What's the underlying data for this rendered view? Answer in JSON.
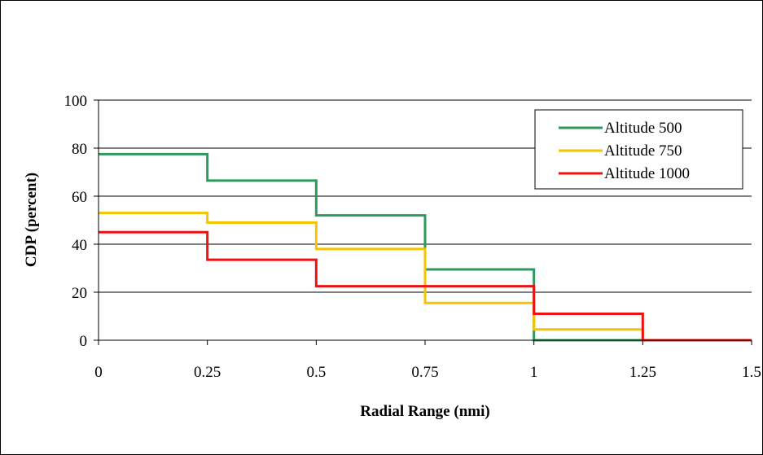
{
  "chart_data": {
    "type": "line",
    "step": true,
    "xlabel": "Radial Range (nmi)",
    "ylabel": "CDP (percent)",
    "xlim": [
      0,
      1.5
    ],
    "ylim": [
      0,
      100
    ],
    "x_ticks": [
      "0",
      "0.25",
      "0.5",
      "0.75",
      "1",
      "1.25",
      "1.5"
    ],
    "y_ticks": [
      "0",
      "20",
      "40",
      "60",
      "80",
      "100"
    ],
    "x_tick_values": [
      0,
      0.25,
      0.5,
      0.75,
      1,
      1.25,
      1.5
    ],
    "y_tick_values": [
      0,
      20,
      40,
      60,
      80,
      100
    ],
    "grid": "horizontal",
    "legend_position": "top-right",
    "series": [
      {
        "name": "Altitude 500",
        "color": "#2e9a5e",
        "x": [
          0,
          0.25,
          0.5,
          0.75,
          1
        ],
        "values": [
          77.5,
          66.5,
          52,
          29.5,
          0
        ]
      },
      {
        "name": "Altitude 750",
        "color": "#f5c400",
        "x": [
          0,
          0.25,
          0.5,
          0.75,
          1,
          1.25
        ],
        "values": [
          53,
          49,
          38,
          15.5,
          4.5,
          0
        ]
      },
      {
        "name": "Altitude 1000",
        "color": "#ee1111",
        "x": [
          0,
          0.25,
          0.5,
          0.75,
          1,
          1.25,
          1.5
        ],
        "values": [
          45,
          33.5,
          22.5,
          22.5,
          11,
          0,
          0
        ]
      }
    ]
  }
}
